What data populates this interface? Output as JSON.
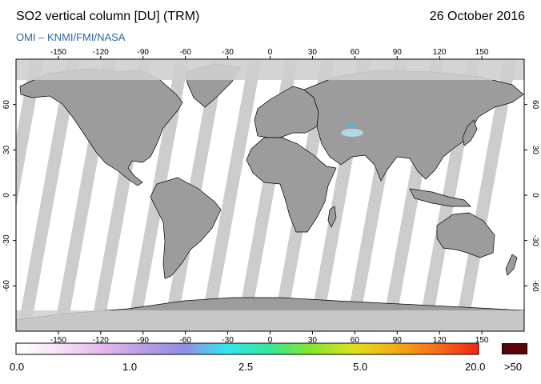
{
  "header": {
    "title": "SO2 vertical column [DU] (TRM)",
    "date": "26 October 2016",
    "credit": "OMI  –  KNMI/FMI/NASA"
  },
  "map": {
    "lon_ticks": [
      "-150",
      "-120",
      "-90",
      "-60",
      "-30",
      "0",
      "30",
      "60",
      "90",
      "120",
      "150"
    ],
    "lat_ticks": [
      "60",
      "30",
      "0",
      "-30",
      "-60"
    ],
    "lon_range": [
      -180,
      180
    ],
    "lat_range": [
      -90,
      90
    ],
    "land_color": "#9c9c9c",
    "orbit_gap_color": "#cccccc",
    "no_data_color": "#cfcfcf",
    "ocean_color": "#ffffff"
  },
  "colorbar": {
    "labels": [
      "0.0",
      "1.0",
      "2.5",
      "5.0",
      "20.0"
    ],
    "over_label": ">50",
    "stops": [
      "#ffffff",
      "#f6e3f6",
      "#e8b9ee",
      "#b99de6",
      "#8e8ee6",
      "#33e6ef",
      "#36e69a",
      "#82e62c",
      "#dce21b",
      "#f3ad16",
      "#f66e1b",
      "#f22515"
    ],
    "over_color": "#5a0505"
  }
}
